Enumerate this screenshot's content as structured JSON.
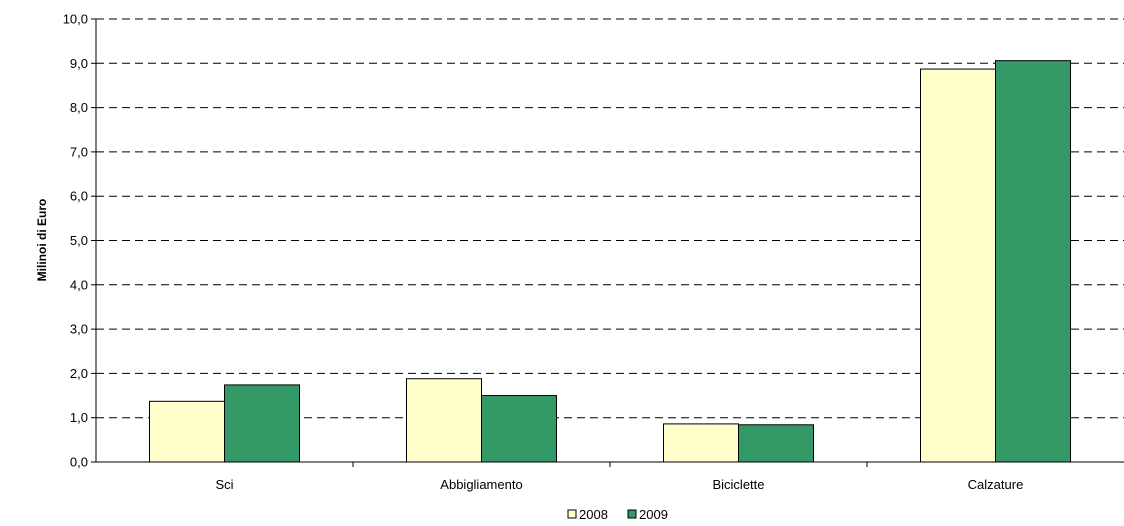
{
  "chart_data": {
    "type": "bar",
    "categories": [
      "Sci",
      "Abbigliamento",
      "Biciclette",
      "Calzature"
    ],
    "series": [
      {
        "name": "2008",
        "values": [
          1.37,
          1.88,
          0.86,
          8.87
        ],
        "color": "#ffffcc"
      },
      {
        "name": "2009",
        "values": [
          1.74,
          1.5,
          0.84,
          9.06
        ],
        "color": "#339966"
      }
    ],
    "title": "",
    "xlabel": "",
    "ylabel": "Milinoi di Euro",
    "ylim": [
      0,
      10
    ],
    "yticks": [
      "0,0",
      "1,0",
      "2,0",
      "3,0",
      "4,0",
      "5,0",
      "6,0",
      "7,0",
      "8,0",
      "9,0",
      "10,0"
    ],
    "grid": "dashed horizontal",
    "legend_position": "bottom"
  }
}
